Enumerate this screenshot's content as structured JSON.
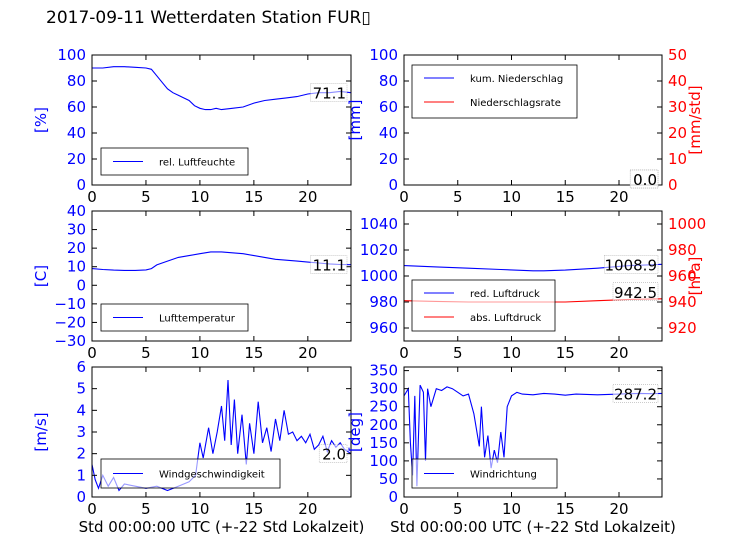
{
  "title": "2017-09-11 Wetterdaten Station FUR▯",
  "colors": {
    "blue": "#0000ff",
    "red": "#ff0000",
    "black": "#000000"
  },
  "chart_data": [
    {
      "id": "humidity",
      "type": "line",
      "xlim": [
        0,
        24
      ],
      "ylim": [
        0,
        100
      ],
      "xticks": [
        "0",
        "5",
        "10",
        "15",
        "20"
      ],
      "yticks": [
        "0",
        "20",
        "40",
        "60",
        "80",
        "100"
      ],
      "ylabel": "[%]",
      "legend_position": "lower-left",
      "value_label": "71.1",
      "series": [
        {
          "name": "rel. Luftfeuchte",
          "color": "blue",
          "x": [
            0,
            1,
            2,
            3,
            4,
            5,
            5.5,
            6,
            6.5,
            7,
            7.5,
            8,
            8.5,
            9,
            9.5,
            10,
            10.5,
            11,
            11.5,
            12,
            13,
            14,
            15,
            16,
            17,
            18,
            19,
            20,
            21,
            22,
            23,
            24
          ],
          "y": [
            90,
            90,
            91,
            91,
            90.5,
            90,
            89,
            84,
            79,
            74,
            71,
            69,
            67,
            65,
            61,
            59,
            58,
            58,
            59,
            58,
            59,
            60,
            63,
            65,
            66,
            67,
            68,
            70,
            71,
            71,
            72,
            71
          ]
        }
      ]
    },
    {
      "id": "precip",
      "type": "line",
      "xlim": [
        0,
        24
      ],
      "ylim": [
        0,
        100
      ],
      "ylim_right": [
        0,
        50
      ],
      "xticks": [
        "0",
        "5",
        "10",
        "15",
        "20"
      ],
      "yticks": [
        "0",
        "20",
        "40",
        "60",
        "80",
        "100"
      ],
      "yticks_right": [
        "0",
        "10",
        "20",
        "30",
        "40",
        "50"
      ],
      "ylabel": "[mm]",
      "ylabel_right": "[mm/std]",
      "legend_position": "upper-left",
      "value_label": "0.0",
      "value_label_right": "0.0",
      "series": [
        {
          "name": "kum. Niederschlag",
          "color": "blue",
          "axis": "left",
          "x": [
            0,
            24
          ],
          "y": [
            0,
            0
          ]
        },
        {
          "name": "Niederschlagsrate",
          "color": "red",
          "axis": "right",
          "x": [
            0,
            24
          ],
          "y": [
            0,
            0
          ]
        }
      ]
    },
    {
      "id": "temperature",
      "type": "line",
      "xlim": [
        0,
        24
      ],
      "ylim": [
        -30,
        40
      ],
      "xticks": [
        "0",
        "5",
        "10",
        "15",
        "20"
      ],
      "yticks": [
        "−30",
        "−20",
        "−10",
        "0",
        "10",
        "20",
        "30",
        "40"
      ],
      "ylabel": "[C]",
      "legend_position": "lower-left",
      "value_label": "11.1",
      "series": [
        {
          "name": "Lufttemperatur",
          "color": "blue",
          "x": [
            0,
            1,
            2,
            3,
            4,
            5,
            5.5,
            6,
            7,
            8,
            9,
            10,
            11,
            12,
            13,
            14,
            15,
            16,
            17,
            18,
            19,
            20,
            21,
            22,
            23,
            24
          ],
          "y": [
            9,
            8.5,
            8.2,
            8,
            8,
            8.3,
            9,
            11,
            13,
            15,
            16,
            17,
            18,
            18,
            17.5,
            17,
            16,
            15,
            14,
            13.5,
            13,
            12.5,
            12,
            11.5,
            11.2,
            11.1
          ]
        }
      ]
    },
    {
      "id": "pressure",
      "type": "line",
      "xlim": [
        0,
        24
      ],
      "ylim": [
        950,
        1050
      ],
      "ylim_right": [
        910,
        1010
      ],
      "xticks": [
        "0",
        "5",
        "10",
        "15",
        "20"
      ],
      "yticks": [
        "960",
        "980",
        "1000",
        "1020",
        "1040"
      ],
      "yticks_right": [
        "920",
        "940",
        "960",
        "980",
        "1000"
      ],
      "ylabel_right": "[hPa]",
      "legend_position": "lower-left",
      "value_label": "1008.9",
      "value_label_right": "942.5",
      "series": [
        {
          "name": "red. Luftdruck",
          "color": "blue",
          "axis": "left",
          "x": [
            0,
            3,
            6,
            9,
            12,
            13,
            15,
            18,
            21,
            24
          ],
          "y": [
            1008,
            1007,
            1006,
            1005,
            1004,
            1004,
            1004.5,
            1006,
            1008,
            1009
          ]
        },
        {
          "name": "abs. Luftdruck",
          "color": "red",
          "axis": "right",
          "x": [
            0,
            3,
            6,
            9,
            12,
            15,
            18,
            21,
            24
          ],
          "y": [
            941,
            940.5,
            940,
            940,
            940,
            940,
            941,
            942,
            942.5
          ]
        }
      ]
    },
    {
      "id": "windspeed",
      "type": "line",
      "xlim": [
        0,
        24
      ],
      "ylim": [
        0,
        6
      ],
      "xticks": [
        "0",
        "5",
        "10",
        "15",
        "20"
      ],
      "yticks": [
        "0",
        "1",
        "2",
        "3",
        "4",
        "5",
        "6"
      ],
      "ylabel": "[m/s]",
      "xlabel": "Std 00:00:00 UTC (+-22 Std Lokalzeit)",
      "legend_position": "lower-center",
      "value_label": "2.0",
      "series": [
        {
          "name": "Windgeschwindigkeit",
          "color": "blue",
          "x": [
            0,
            0.3,
            0.6,
            1,
            1.5,
            2,
            2.5,
            3,
            4,
            5,
            6,
            7,
            8,
            9,
            9.6,
            10,
            10.3,
            10.8,
            11.2,
            11.6,
            12,
            12.3,
            12.6,
            12.9,
            13.2,
            13.5,
            13.9,
            14.3,
            14.6,
            15,
            15.4,
            15.8,
            16.2,
            16.6,
            17,
            17.4,
            17.8,
            18.2,
            18.6,
            19,
            19.4,
            19.8,
            20.2,
            20.6,
            21,
            21.4,
            21.8,
            22.2,
            22.6,
            23,
            23.4,
            24
          ],
          "y": [
            1.5,
            0.8,
            0.4,
            1.0,
            0.5,
            0.9,
            0.3,
            0.6,
            0.5,
            0.4,
            0.5,
            0.3,
            0.5,
            0.7,
            1.0,
            2.5,
            1.8,
            3.2,
            2.0,
            3.0,
            4.2,
            2.6,
            5.4,
            2.4,
            4.5,
            2.0,
            3.8,
            1.5,
            3.4,
            2.0,
            4.4,
            2.5,
            3.2,
            2.1,
            3.6,
            2.6,
            4.0,
            2.9,
            3.0,
            2.6,
            2.8,
            2.5,
            2.9,
            2.2,
            2.4,
            2.8,
            2.1,
            2.6,
            2.3,
            2.5,
            2.2,
            2.0
          ]
        }
      ]
    },
    {
      "id": "winddir",
      "type": "line",
      "xlim": [
        0,
        24
      ],
      "ylim": [
        0,
        360
      ],
      "xticks": [
        "0",
        "5",
        "10",
        "15",
        "20"
      ],
      "yticks": [
        "0",
        "50",
        "100",
        "150",
        "200",
        "250",
        "300",
        "350"
      ],
      "ylabel": "[deg]",
      "xlabel": "Std 00:00:00 UTC (+-22 Std Lokalzeit)",
      "legend_position": "lower-left",
      "value_label": "287.2",
      "series": [
        {
          "name": "Windrichtung",
          "color": "blue",
          "x": [
            0,
            0.4,
            0.6,
            0.8,
            1.0,
            1.2,
            1.5,
            1.8,
            2.0,
            2.2,
            2.5,
            3,
            3.5,
            4,
            4.5,
            5,
            5.5,
            6,
            6.5,
            7,
            7.2,
            7.5,
            7.8,
            8.1,
            8.4,
            8.7,
            9.0,
            9.3,
            9.6,
            10,
            10.5,
            11,
            12,
            13,
            14,
            15,
            16,
            17,
            18,
            19,
            20,
            21,
            22,
            23,
            24
          ],
          "y": [
            280,
            300,
            150,
            60,
            280,
            30,
            310,
            290,
            100,
            300,
            250,
            300,
            295,
            305,
            300,
            290,
            280,
            285,
            230,
            140,
            250,
            110,
            170,
            80,
            130,
            95,
            180,
            110,
            250,
            280,
            290,
            285,
            283,
            287,
            285,
            282,
            285,
            284,
            283,
            284,
            285,
            286,
            287,
            286,
            287
          ]
        }
      ]
    }
  ]
}
